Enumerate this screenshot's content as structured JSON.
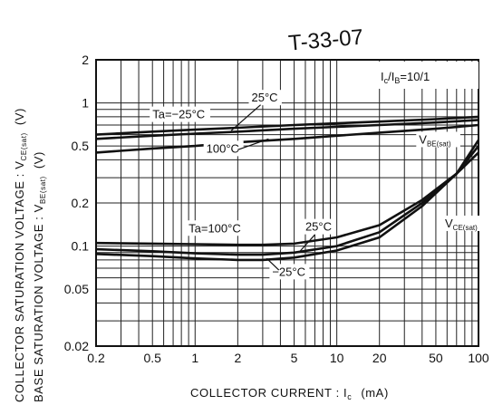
{
  "header_code": "T-33-07",
  "chart_data": {
    "type": "line",
    "title": "",
    "xlabel": "COLLECTOR CURRENT : I",
    "xlabel_sub": "c",
    "xlabel_unit": "(mA)",
    "ylabel_line1": "COLLECTOR SATURATION VOLTAGE : V",
    "ylabel_line1_sub": "CE(sat)",
    "ylabel_line1_unit": "(V)",
    "ylabel_line2": "BASE SATURATION VOLTAGE : V",
    "ylabel_line2_sub": "BE(sat)",
    "ylabel_line2_unit": "(V)",
    "x_scale": "log",
    "y_scale": "log",
    "xlim": [
      0.2,
      100
    ],
    "ylim": [
      0.02,
      2
    ],
    "grid": true,
    "x_ticks": [
      {
        "value": 0.2,
        "label": "0.2"
      },
      {
        "value": 0.5,
        "label": "0.5"
      },
      {
        "value": 1,
        "label": "1"
      },
      {
        "value": 2,
        "label": "2"
      },
      {
        "value": 5,
        "label": "5"
      },
      {
        "value": 10,
        "label": "10"
      },
      {
        "value": 20,
        "label": "20"
      },
      {
        "value": 50,
        "label": "50"
      },
      {
        "value": 100,
        "label": "100"
      }
    ],
    "y_ticks": [
      {
        "value": 2,
        "label": "2"
      },
      {
        "value": 1,
        "label": "1"
      },
      {
        "value": 0.5,
        "label": "0.5"
      },
      {
        "value": 0.2,
        "label": "0.2"
      },
      {
        "value": 0.1,
        "label": "0.1"
      },
      {
        "value": 0.05,
        "label": "0.05"
      },
      {
        "value": 0.02,
        "label": "0.02"
      }
    ],
    "condition": {
      "text": "I",
      "sub1": "c",
      "mid": "/I",
      "sub2": "B",
      "value": "=10/1"
    },
    "series": [
      {
        "group": "VBE(sat)",
        "temp": "-25°C",
        "points": [
          [
            0.2,
            0.6
          ],
          [
            0.5,
            0.63
          ],
          [
            1,
            0.65
          ],
          [
            2,
            0.67
          ],
          [
            5,
            0.7
          ],
          [
            10,
            0.72
          ],
          [
            20,
            0.74
          ],
          [
            50,
            0.77
          ],
          [
            100,
            0.8
          ]
        ]
      },
      {
        "group": "VBE(sat)",
        "temp": "25°C",
        "points": [
          [
            0.2,
            0.56
          ],
          [
            0.5,
            0.59
          ],
          [
            1,
            0.61
          ],
          [
            2,
            0.63
          ],
          [
            5,
            0.66
          ],
          [
            10,
            0.68
          ],
          [
            20,
            0.7
          ],
          [
            50,
            0.73
          ],
          [
            100,
            0.76
          ]
        ]
      },
      {
        "group": "VBE(sat)",
        "temp": "100°C",
        "points": [
          [
            0.2,
            0.45
          ],
          [
            0.5,
            0.48
          ],
          [
            1,
            0.5
          ],
          [
            2,
            0.53
          ],
          [
            5,
            0.56
          ],
          [
            10,
            0.59
          ],
          [
            20,
            0.62
          ],
          [
            50,
            0.66
          ],
          [
            100,
            0.7
          ]
        ]
      },
      {
        "group": "VCE(sat)",
        "temp": "100°C",
        "points": [
          [
            0.2,
            0.105
          ],
          [
            0.5,
            0.104
          ],
          [
            1,
            0.103
          ],
          [
            2,
            0.102
          ],
          [
            3,
            0.102
          ],
          [
            5,
            0.104
          ],
          [
            10,
            0.115
          ],
          [
            20,
            0.14
          ],
          [
            40,
            0.21
          ],
          [
            70,
            0.32
          ],
          [
            100,
            0.45
          ]
        ]
      },
      {
        "group": "VCE(sat)",
        "temp": "25°C",
        "points": [
          [
            0.2,
            0.095
          ],
          [
            0.5,
            0.092
          ],
          [
            1,
            0.089
          ],
          [
            2,
            0.087
          ],
          [
            3,
            0.087
          ],
          [
            5,
            0.09
          ],
          [
            10,
            0.1
          ],
          [
            20,
            0.125
          ],
          [
            40,
            0.2
          ],
          [
            70,
            0.32
          ],
          [
            100,
            0.5
          ]
        ]
      },
      {
        "group": "VCE(sat)",
        "temp": "-25°C",
        "points": [
          [
            0.2,
            0.088
          ],
          [
            0.5,
            0.085
          ],
          [
            1,
            0.082
          ],
          [
            2,
            0.08
          ],
          [
            3,
            0.08
          ],
          [
            5,
            0.083
          ],
          [
            10,
            0.093
          ],
          [
            20,
            0.115
          ],
          [
            40,
            0.19
          ],
          [
            70,
            0.32
          ],
          [
            100,
            0.55
          ]
        ]
      }
    ],
    "annotations": [
      {
        "id": "ta-m25-vbe",
        "text": "Ta=−25°C",
        "x": 0.5,
        "y": 0.78
      },
      {
        "id": "t25-vbe",
        "text": "25°C",
        "x": 2.5,
        "y": 1.02
      },
      {
        "id": "t100-vbe",
        "text": "100°C",
        "x": 1.2,
        "y": 0.45
      },
      {
        "id": "vbe-label",
        "text": "V",
        "sub": "BE(sat)",
        "x": 38,
        "y": 0.52
      },
      {
        "id": "ta100-vce",
        "text": "Ta=100°C",
        "x": 0.9,
        "y": 0.125
      },
      {
        "id": "t25-vce",
        "text": "25°C",
        "x": 6.0,
        "y": 0.128
      },
      {
        "id": "tm25-vce",
        "text": "−25°C",
        "x": 3.5,
        "y": 0.062
      },
      {
        "id": "vce-label",
        "text": "V",
        "sub": "CE(sat)",
        "x": 58,
        "y": 0.135
      }
    ]
  }
}
